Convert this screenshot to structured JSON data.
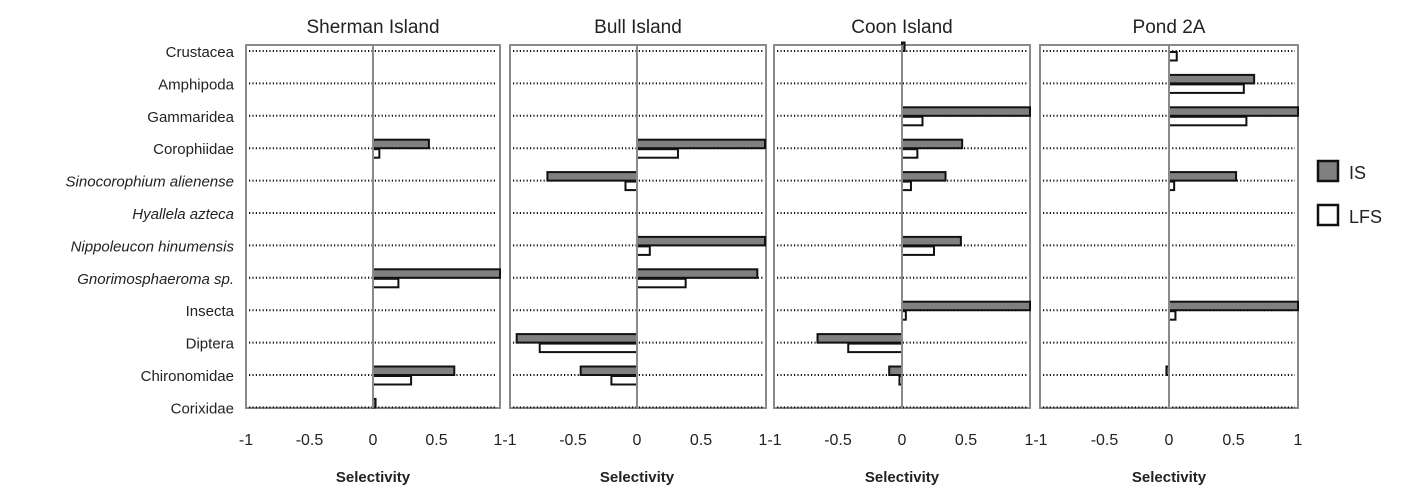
{
  "chart_data": {
    "type": "bar",
    "orientation": "horizontal",
    "categories": [
      "Crustacea",
      "Amphipoda",
      "Gammaridea",
      "Corophiidae",
      "Sinocorophium alienense",
      "Hyallela azteca",
      "Nippoleucon hinumensis",
      "Gnorimosphaeroma sp.",
      "Insecta",
      "Diptera",
      "Chironomidae",
      "Corixidae"
    ],
    "italic_categories": [
      "Sinocorophium alienense",
      "Hyallela azteca",
      "Nippoleucon hinumensis",
      "Gnorimosphaeroma sp."
    ],
    "xlabel": "Selectivity",
    "xlim": [
      -1,
      1
    ],
    "xticks": [
      "-1",
      "-0.5",
      "0",
      "0.5",
      "1"
    ],
    "grid": "dotted horizontal",
    "legend": {
      "placement": "right",
      "entries": [
        {
          "name": "IS",
          "color": "#808080"
        },
        {
          "name": "LFS",
          "color": "#ffffff"
        }
      ]
    },
    "panels": [
      {
        "title": "Sherman Island",
        "series": [
          {
            "name": "IS",
            "values": [
              0,
              0,
              0,
              0.44,
              0,
              0,
              0,
              1,
              0,
              0,
              0.64,
              0.02
            ]
          },
          {
            "name": "LFS",
            "values": [
              0,
              0,
              0,
              0.05,
              0,
              0,
              0,
              0.2,
              0,
              0,
              0.3,
              0
            ]
          }
        ]
      },
      {
        "title": "Bull Island",
        "series": [
          {
            "name": "IS",
            "values": [
              0,
              0,
              0,
              1,
              -0.7,
              0,
              1,
              0.94,
              0,
              -0.94,
              -0.44,
              0
            ]
          },
          {
            "name": "LFS",
            "values": [
              0,
              0,
              0,
              0.32,
              -0.09,
              0,
              0.1,
              0.38,
              0,
              -0.76,
              -0.2,
              0
            ]
          }
        ]
      },
      {
        "title": "Coon Island",
        "series": [
          {
            "name": "IS",
            "values": [
              0.02,
              0,
              1,
              0.47,
              0.34,
              0,
              0.46,
              0,
              1,
              -0.66,
              -0.1,
              0
            ]
          },
          {
            "name": "LFS",
            "values": [
              0,
              0,
              0.16,
              0.12,
              0.07,
              0,
              0.25,
              0,
              0.03,
              -0.42,
              -0.02,
              0
            ]
          }
        ]
      },
      {
        "title": "Pond 2A",
        "series": [
          {
            "name": "IS",
            "values": [
              0,
              0.66,
              1,
              0,
              0.52,
              0,
              0,
              0,
              1,
              0,
              -0.02,
              0
            ]
          },
          {
            "name": "LFS",
            "values": [
              0.06,
              0.58,
              0.6,
              0,
              0.04,
              0,
              0,
              0,
              0.05,
              0,
              0,
              0
            ]
          }
        ]
      }
    ]
  }
}
